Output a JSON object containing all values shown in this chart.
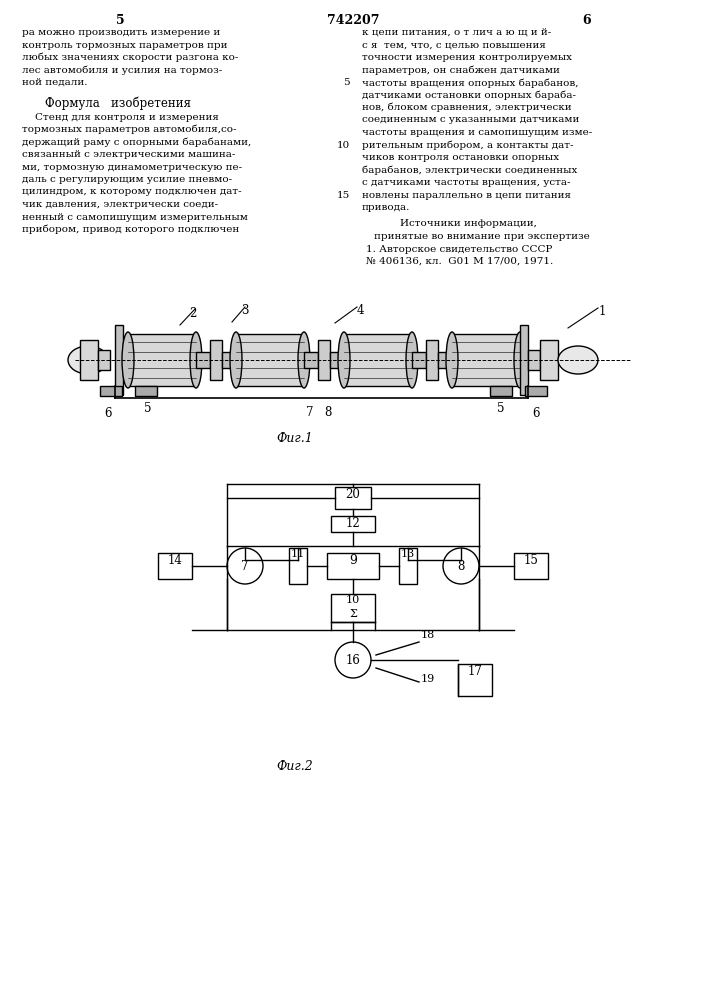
{
  "bg": "#ffffff",
  "fg": "#000000",
  "page_left": "5",
  "page_center": "742207",
  "page_right": "6",
  "fig1_caption": "Фиг.1",
  "fig2_caption": "Фиг.2",
  "left_top": [
    "ра можно производить измерение и",
    "контроль тормозных параметров при",
    "любых значениях скорости разгона ко-",
    "лес автомобиля и усилия на тормоз-",
    "ной педали."
  ],
  "formula_heading": "Формула   изобретения",
  "left_formula": [
    "    Стенд для контроля и измерения",
    "тормозных параметров автомобиля,со-",
    "держащий раму с опорными барабанами,",
    "связанный с электрическими машина-",
    "ми, тормозную динамометрическую пе-",
    "даль с регулирующим усилие пневмо-",
    "цилиндром, к которому подключен дат-",
    "чик давления, электрически соеди-",
    "ненный с самопишущим измерительным",
    "прибором, привод которого подключен"
  ],
  "right_col": [
    [
      "к цепи питания, о т лич а ю щ и й-",
      null
    ],
    [
      "с я  тем, что, с целью повышения",
      null
    ],
    [
      "точности измерения контролируемых",
      null
    ],
    [
      "параметров, он снабжен датчиками",
      null
    ],
    [
      "частоты вращения опорных барабанов,",
      "5"
    ],
    [
      "датчиками остановки опорных бараба-",
      null
    ],
    [
      "нов, блоком сравнения, электрически",
      null
    ],
    [
      "соединенным с указанными датчиками",
      null
    ],
    [
      "частоты вращения и самопишущим изме-",
      null
    ],
    [
      "рительным прибором, а контакты дат-",
      "10"
    ],
    [
      "чиков контроля остановки опорных",
      null
    ],
    [
      "барабанов, электрически соединенных",
      null
    ],
    [
      "с датчиками частоты вращения, уста-",
      null
    ],
    [
      "новлены параллельно в цепи питания",
      "15"
    ],
    [
      "привода.",
      null
    ]
  ],
  "src_head": "Источники информации,",
  "src1": "принятые во внимание при экспертизе",
  "src2": "1. Авторское свидетельство СССР",
  "src3": "№ 406136, кл.  G01 M 17/00, 1971."
}
